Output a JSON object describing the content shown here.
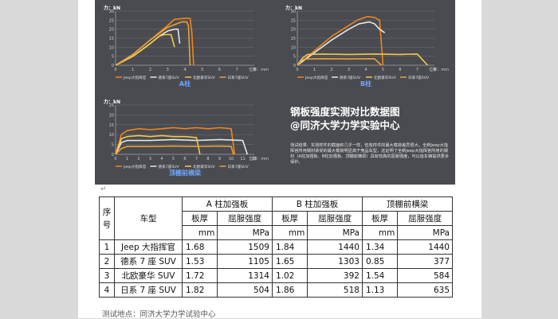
{
  "colors": {
    "series": [
      "#f0851c",
      "#e6e6e6",
      "#f5c84a",
      "#e8a23a"
    ],
    "figure_bg": "#4a4b50",
    "grid": "#7a7a7a"
  },
  "chart_data": [
    {
      "type": "line",
      "title": "A柱",
      "ylabel": "力：kN",
      "xlabel": "位移：mm",
      "xlim": [
        0,
        8
      ],
      "ylim": [
        0,
        30
      ],
      "x_ticks": [
        "0",
        "1",
        "2",
        "3",
        "4",
        "5",
        "6",
        "7",
        "8"
      ],
      "y_ticks": [
        "0",
        "5",
        "10",
        "15",
        "20",
        "25",
        "30"
      ],
      "series": [
        {
          "name": "Jeep大指挥官",
          "x": [
            0,
            1,
            2,
            3,
            3.4,
            4.0,
            4.3,
            4.4,
            4.5
          ],
          "y": [
            0,
            6,
            14,
            22,
            25.5,
            26,
            26,
            18,
            0
          ]
        },
        {
          "name": "德系7座SUV",
          "x": [
            0,
            1,
            2,
            2.5,
            3,
            3.4,
            3.6,
            3.7
          ],
          "y": [
            0,
            5,
            12,
            16,
            19,
            20,
            20,
            12
          ]
        },
        {
          "name": "北欧豪华SUV",
          "x": [
            0,
            1,
            2,
            2.5,
            2.8,
            3.2,
            3.4
          ],
          "y": [
            0,
            5,
            12,
            16,
            17,
            17,
            10
          ]
        },
        {
          "name": "日系7座SUV",
          "x": [
            0,
            1,
            2,
            3,
            3.8,
            4.1,
            4.2,
            4.3
          ],
          "y": [
            0,
            6,
            14,
            21,
            24,
            24,
            22,
            0
          ]
        }
      ]
    },
    {
      "type": "line",
      "title": "B柱",
      "ylabel": "力：kN",
      "xlabel": "位移：mm",
      "xlim": [
        0,
        8
      ],
      "ylim": [
        0,
        30
      ],
      "x_ticks": [
        "0",
        "1",
        "2",
        "3",
        "4",
        "5",
        "6",
        "7",
        "8"
      ],
      "y_ticks": [
        "0",
        "5",
        "10",
        "15",
        "20",
        "25",
        "30"
      ],
      "series": [
        {
          "name": "Jeep大指挥官",
          "x": [
            0,
            1,
            2,
            3,
            3.5,
            4.1,
            4.5,
            4.8,
            5.0
          ],
          "y": [
            0,
            8,
            16,
            22,
            25,
            27,
            26.5,
            25,
            0
          ]
        },
        {
          "name": "德系7座SUV",
          "x": [
            0,
            1,
            2,
            3,
            3.6,
            4.2,
            4.5,
            4.8,
            5.1
          ],
          "y": [
            0,
            7,
            14,
            20,
            23,
            24,
            23,
            20,
            18
          ]
        },
        {
          "name": "北欧豪华SUV",
          "x": [
            0,
            0.3,
            0.6,
            1.5,
            3,
            4.5,
            6,
            7,
            7.6
          ],
          "y": [
            0,
            4,
            6,
            6.2,
            6,
            6.2,
            6,
            6.2,
            0
          ]
        },
        {
          "name": "日系7座SUV",
          "x": [
            0,
            0.3,
            0.6,
            1.5,
            3,
            4.5,
            4.9
          ],
          "y": [
            0,
            3,
            3.5,
            3.6,
            3.5,
            3.6,
            0
          ]
        }
      ]
    },
    {
      "type": "line",
      "title": "顶棚前横梁",
      "ylabel": "力：kN",
      "xlabel": "位移：mm",
      "xlim": [
        0,
        12
      ],
      "ylim": [
        0,
        25
      ],
      "x_ticks": [
        "0",
        "1",
        "2",
        "3",
        "4",
        "5",
        "6",
        "7",
        "8",
        "9",
        "10",
        "11",
        "12"
      ],
      "y_ticks": [
        "0",
        "5",
        "10",
        "15",
        "20",
        "25"
      ],
      "series": [
        {
          "name": "Jeep大指挥官",
          "x": [
            0,
            0.5,
            1,
            2,
            3,
            4,
            5,
            6,
            7,
            8,
            9,
            10,
            10.3
          ],
          "y": [
            0,
            10,
            12,
            13,
            12.5,
            13,
            13.5,
            13,
            13.5,
            13,
            13.5,
            13,
            0
          ]
        },
        {
          "name": "德系7座SUV",
          "x": [
            0,
            0.5,
            1,
            3,
            5,
            7,
            9,
            11,
            11.4
          ],
          "y": [
            0,
            6,
            7,
            7,
            7.5,
            7,
            7.5,
            7,
            0
          ]
        },
        {
          "name": "北欧豪华SUV",
          "x": [
            0,
            0.5,
            1,
            2,
            3,
            4,
            5,
            6,
            7,
            7.3
          ],
          "y": [
            0,
            8,
            9,
            9.5,
            9,
            9.5,
            9,
            9,
            8.5,
            0
          ]
        },
        {
          "name": "日系7座SUV",
          "x": [
            0,
            0.5,
            1,
            3,
            5,
            7,
            9,
            10,
            10.2
          ],
          "y": [
            0,
            3,
            4,
            4,
            4.2,
            4,
            4.2,
            4,
            0
          ]
        }
      ]
    }
  ],
  "figure": {
    "title_line1": "钢板强度实测对比数据图",
    "title_line2": "@同济大学力学实验中心",
    "description": "测试结果：实测样件的截面积几乎一样，但各样件的最大载荷差异很大。全新Jeep大指挥官所用钢材承受的最大载荷明显高于竞品车型，这证明了全新Jeep大指挥官所用的钢材（A柱加强板、B柱加强板、顶棚前横梁）具有较高的屈服强度，可以给车辆提供更多保护。"
  },
  "table": {
    "header_row1": {
      "index": "序号",
      "model": "车型",
      "groups": [
        "A 柱加强板",
        "B 柱加强板",
        "顶棚前横梁"
      ]
    },
    "header_row2": [
      "板厚",
      "屈服强度",
      "板厚",
      "屈服强度",
      "板厚",
      "屈服强度"
    ],
    "header_row3": [
      "mm",
      "MPa",
      "mm",
      "MPa",
      "mm",
      "MPa"
    ],
    "rows": [
      {
        "index": "1",
        "model": "Jeep 大指挥官",
        "values": [
          "1.68",
          "1509",
          "1.84",
          "1440",
          "1.34",
          "1440"
        ]
      },
      {
        "index": "2",
        "model": "德系 7 座 SUV",
        "values": [
          "1.53",
          "1105",
          "1.65",
          "1303",
          "0.85",
          "377"
        ]
      },
      {
        "index": "3",
        "model": "北欧豪华 SUV",
        "values": [
          "1.72",
          "1314",
          "1.02",
          "392",
          "1.54",
          "584"
        ]
      },
      {
        "index": "4",
        "model": "日系 7 座 SUV",
        "values": [
          "1.82",
          "504",
          "1.86",
          "518",
          "1.13",
          "635"
        ]
      }
    ]
  },
  "footer": {
    "location": "测试地点：同济大学力学试验中心"
  },
  "marks": {
    "return": "↵"
  }
}
